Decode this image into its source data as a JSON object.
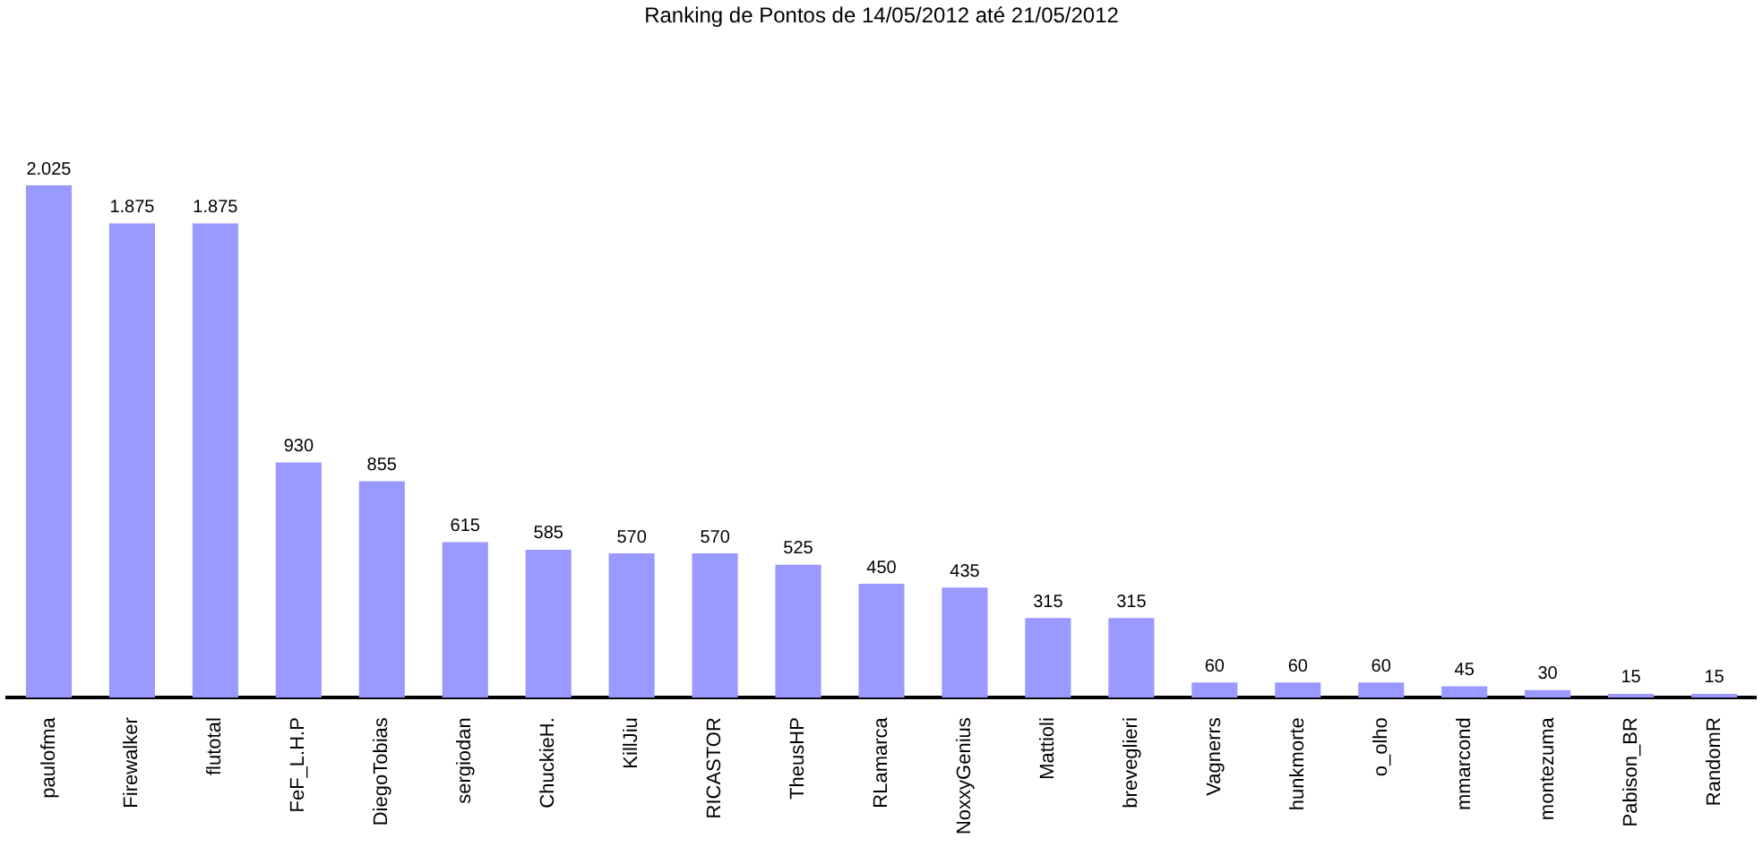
{
  "chart_data": {
    "type": "bar",
    "title": "Ranking de Pontos de 14/05/2012 até 21/05/2012",
    "categories": [
      "paulofma",
      "Firewalker",
      "flutotal",
      "FeF_L.H.P",
      "DiegoTobias",
      "sergiodan",
      "ChuckieH.",
      "KillJiu",
      "RICASTOR",
      "TheusHP",
      "RLamarca",
      "NoxxyGenius",
      "Mattioli",
      "breveglieri",
      "Vagnerrs",
      "hunkmorte",
      "o_olho",
      "mmarcond",
      "montezuma",
      "Pabison_BR",
      "RandomR"
    ],
    "values": [
      2025,
      1875,
      1875,
      930,
      855,
      615,
      585,
      570,
      570,
      525,
      450,
      435,
      315,
      315,
      60,
      60,
      60,
      45,
      30,
      15,
      15
    ],
    "value_labels": [
      "2.025",
      "1.875",
      "1.875",
      "930",
      "855",
      "615",
      "585",
      "570",
      "570",
      "525",
      "450",
      "435",
      "315",
      "315",
      "60",
      "60",
      "60",
      "45",
      "30",
      "15",
      "15"
    ],
    "color": "#9999ff",
    "tick_labels": "x",
    "grid": false,
    "legend": false
  }
}
